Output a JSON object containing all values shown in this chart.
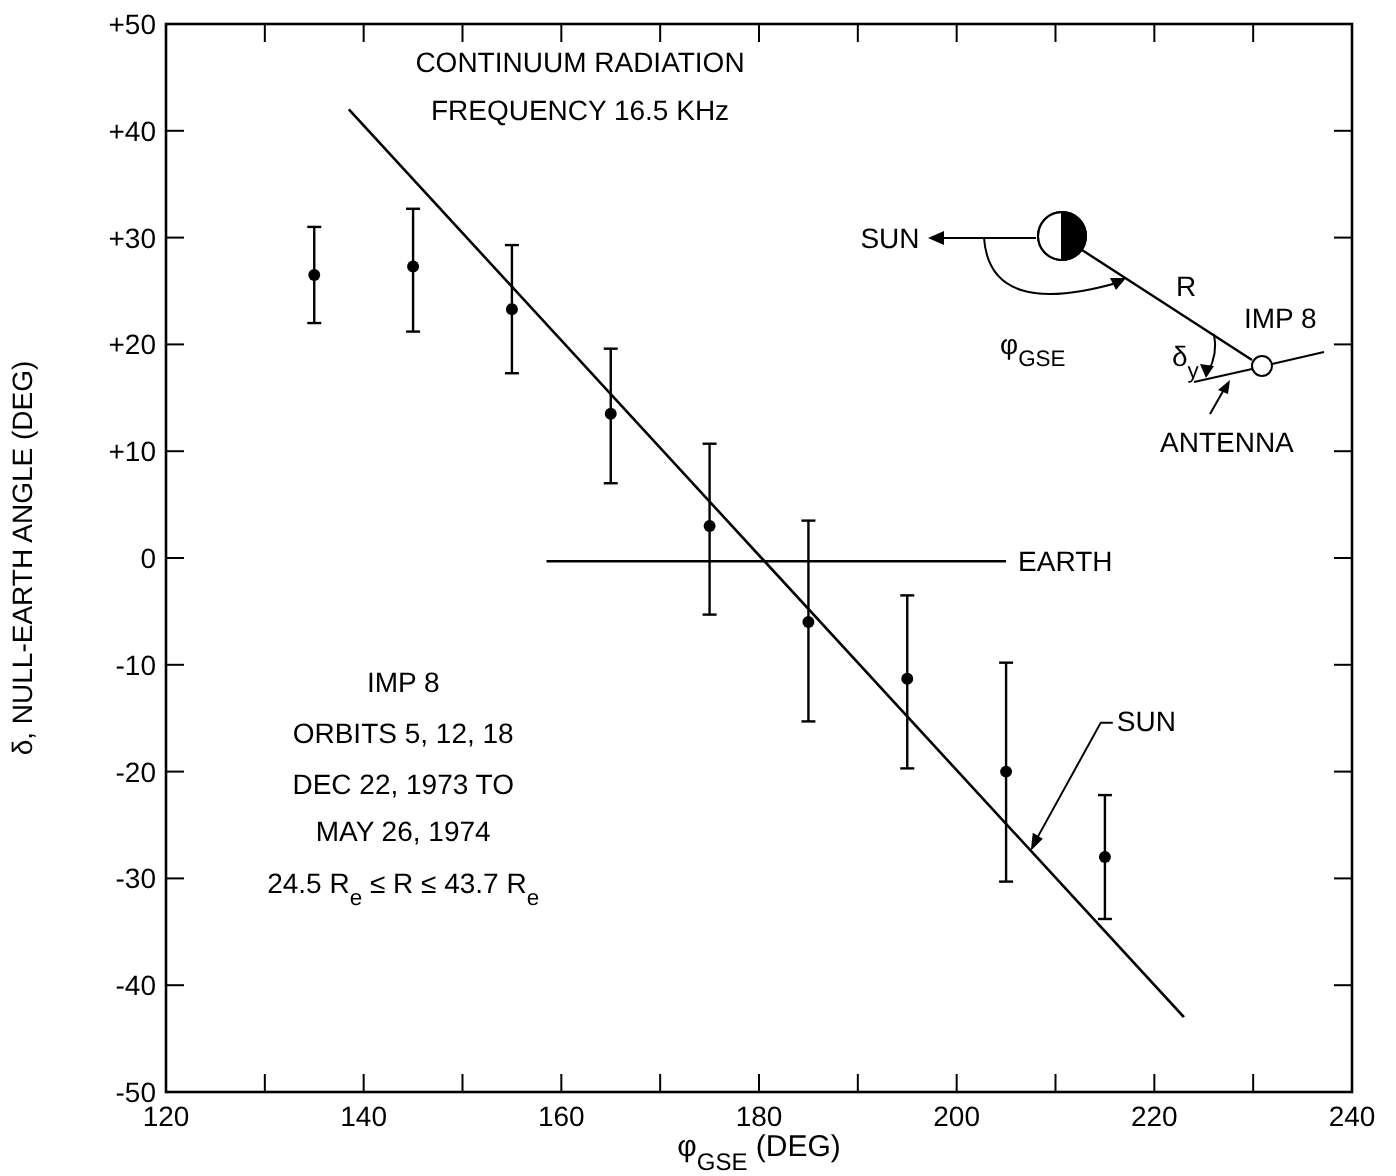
{
  "chart_data": {
    "type": "scatter",
    "title": "CONTINUUM RADIATION",
    "subtitle": "FREQUENCY 16.5 KHz",
    "xlabel": "φ$_{GSE}$ (DEG)",
    "ylabel": "δ, NULL-EARTH ANGLE (DEG)",
    "x": [
      135,
      145,
      155,
      165,
      175,
      185,
      195,
      205,
      215
    ],
    "series": [
      {
        "color": "#000000",
        "marker": "circle",
        "values": [
          26.5,
          27.3,
          23.3,
          13.5,
          3,
          -6,
          -11.3,
          -20,
          -28
        ],
        "errors": [
          [
            22,
            31
          ],
          [
            21.2,
            32.7
          ],
          [
            17.3,
            29.3
          ],
          [
            7,
            19.6
          ],
          [
            -5.3,
            10.7
          ],
          [
            -15.3,
            3.5
          ],
          [
            -19.7,
            -3.5
          ],
          [
            -30.3,
            -9.8
          ],
          [
            -33.8,
            -22.2
          ]
        ]
      },
      {
        "type": "line",
        "color": "#000000",
        "x": [
          138.5,
          223
        ],
        "values": [
          42,
          -43
        ]
      },
      {
        "type": "line",
        "name": "EARTH",
        "color": "#000000",
        "x": [
          158.5,
          205
        ],
        "values": [
          -0.3,
          -0.3
        ]
      }
    ],
    "xlim": [
      120,
      240
    ],
    "xticks": [
      120,
      {
        "value": 130,
        "label": null
      },
      140,
      {
        "value": 150,
        "label": null
      },
      160,
      {
        "value": 170,
        "label": null
      },
      180,
      {
        "value": 190,
        "label": null
      },
      200,
      {
        "value": 210,
        "label": null
      },
      220,
      {
        "value": 230,
        "label": null
      },
      240
    ],
    "ylim": [
      -50,
      50
    ],
    "yticks": [
      -50,
      -40,
      -30,
      -20,
      -10,
      0,
      {
        "value": 10,
        "label": "+10"
      },
      {
        "value": 20,
        "label": "+20"
      },
      {
        "value": 30,
        "label": "+30"
      },
      {
        "value": 40,
        "label": "+40"
      },
      {
        "value": 50,
        "label": "+50"
      }
    ],
    "grid": false,
    "annotations": [
      "IMP 8",
      "ORBITS 5, 12, 18",
      "DEC 22, 1973 TO",
      "MAY 26, 1974",
      "24.5 R$_{e}$ ≤ R ≤ 43.7 R$_{e}$",
      {
        "text": "SUN",
        "x": 207.5,
        "y": -27.4
      },
      "SUN",
      "R",
      "IMP 8",
      "φ$_{GSE}$",
      "δ$_{y}$",
      "ANTENNA"
    ]
  }
}
